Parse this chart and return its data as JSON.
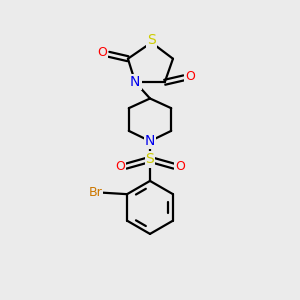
{
  "bg_color": "#ebebeb",
  "bond_color": "#000000",
  "S_color": "#cccc00",
  "N_color": "#0000ee",
  "O_color": "#ff0000",
  "Br_color": "#cc7700",
  "line_width": 1.6,
  "figsize": [
    3.0,
    3.0
  ],
  "dpi": 100,
  "xlim": [
    0,
    10
  ],
  "ylim": [
    0,
    10
  ]
}
